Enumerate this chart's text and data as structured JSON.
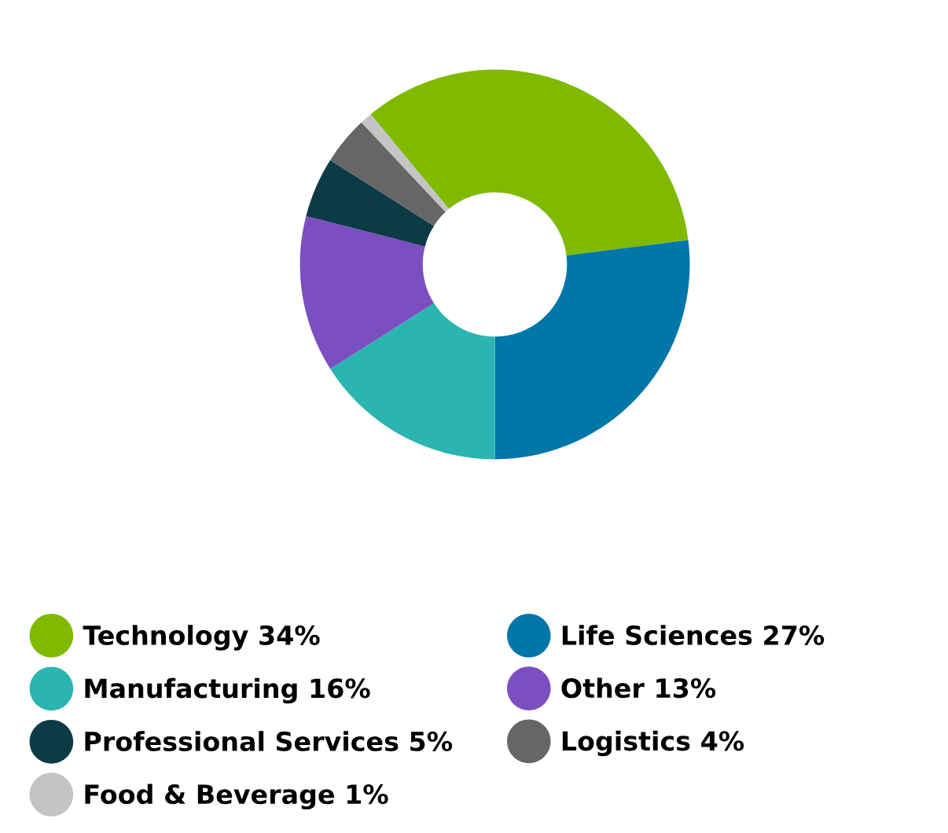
{
  "chart_data": {
    "type": "donut",
    "categories": [
      "Technology",
      "Life Sciences",
      "Manufacturing",
      "Other",
      "Professional Services",
      "Logistics",
      "Food & Beverage"
    ],
    "values": [
      34,
      27,
      16,
      13,
      5,
      4,
      1
    ],
    "value_labels": [
      "34%",
      "27%",
      "16%",
      "13%",
      "5%",
      "4%",
      "1%"
    ],
    "colors": [
      "#7fba00",
      "#0077a8",
      "#2bb5b0",
      "#7b4fc0",
      "#0d3a47",
      "#666666",
      "#c4c4c4"
    ],
    "legend": "bottom"
  }
}
